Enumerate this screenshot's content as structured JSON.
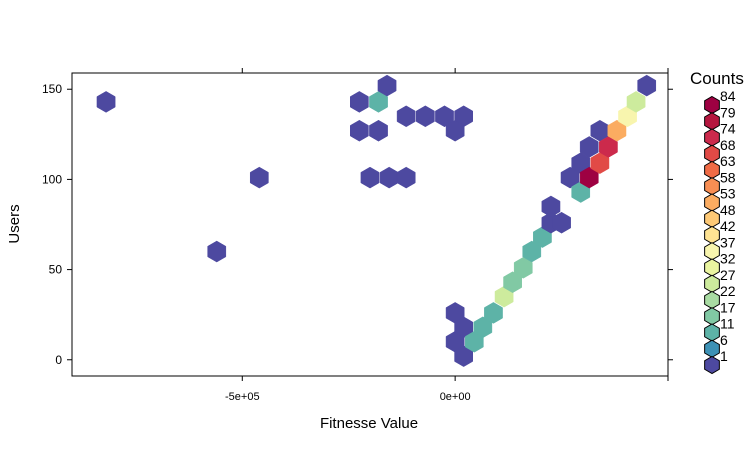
{
  "chart_data": {
    "type": "hexbin",
    "title": "",
    "xlabel": "Fitnesse Value",
    "ylabel": "Users",
    "xlim": [
      -900000,
      500000
    ],
    "ylim": [
      -9,
      159
    ],
    "xticks": [
      {
        "value": -500000,
        "label": "-5e+05"
      },
      {
        "value": 0,
        "label": "0e+00"
      }
    ],
    "yticks": [
      {
        "value": 0,
        "label": "0"
      },
      {
        "value": 50,
        "label": "50"
      },
      {
        "value": 100,
        "label": "100"
      },
      {
        "value": 150,
        "label": "150"
      }
    ],
    "x_ticks_top": [
      -500000,
      0,
      500000
    ],
    "x_ticks_bottom": [
      -500000,
      0,
      500000
    ],
    "legend": {
      "title": "Counts",
      "position": "right",
      "labels": [
        "84",
        "79",
        "74",
        "68",
        "63",
        "58",
        "53",
        "48",
        "42",
        "37",
        "32",
        "27",
        "22",
        "17",
        "11",
        "6",
        "1"
      ],
      "colors": [
        "#9e0142",
        "#b5163f",
        "#cc2a4c",
        "#e14a46",
        "#f06b45",
        "#f88e53",
        "#fbac61",
        "#fdc976",
        "#fee393",
        "#f8f5ae",
        "#eaf5a0",
        "#cdeb9d",
        "#a9dca3",
        "#81c9a4",
        "#5db3a7",
        "#3d91b5",
        "#4d49a0"
      ]
    },
    "cells": [
      {
        "x": -820000,
        "y": 143,
        "count": 1
      },
      {
        "x": -560000,
        "y": 60,
        "count": 1
      },
      {
        "x": -460000,
        "y": 101,
        "count": 1
      },
      {
        "x": -225000,
        "y": 143,
        "count": 1
      },
      {
        "x": -180000,
        "y": 143,
        "count": 11
      },
      {
        "x": -160000,
        "y": 152,
        "count": 1
      },
      {
        "x": -225000,
        "y": 127,
        "count": 1
      },
      {
        "x": -180000,
        "y": 127,
        "count": 1
      },
      {
        "x": -115000,
        "y": 135,
        "count": 1
      },
      {
        "x": -70000,
        "y": 135,
        "count": 1
      },
      {
        "x": -25000,
        "y": 135,
        "count": 1
      },
      {
        "x": 20000,
        "y": 135,
        "count": 1
      },
      {
        "x": 0,
        "y": 127,
        "count": 1
      },
      {
        "x": -200000,
        "y": 101,
        "count": 1
      },
      {
        "x": -155000,
        "y": 101,
        "count": 1
      },
      {
        "x": -115000,
        "y": 101,
        "count": 1
      },
      {
        "x": 0,
        "y": 26,
        "count": 1
      },
      {
        "x": 0,
        "y": 10,
        "count": 1
      },
      {
        "x": 20000,
        "y": 18,
        "count": 1
      },
      {
        "x": 20000,
        "y": 2,
        "count": 1
      },
      {
        "x": 45000,
        "y": 10,
        "count": 11
      },
      {
        "x": 65000,
        "y": 18,
        "count": 11
      },
      {
        "x": 90000,
        "y": 26,
        "count": 11
      },
      {
        "x": 115000,
        "y": 35,
        "count": 27
      },
      {
        "x": 135000,
        "y": 43,
        "count": 17
      },
      {
        "x": 160000,
        "y": 51,
        "count": 17
      },
      {
        "x": 180000,
        "y": 60,
        "count": 11
      },
      {
        "x": 205000,
        "y": 68,
        "count": 11
      },
      {
        "x": 225000,
        "y": 76,
        "count": 1
      },
      {
        "x": 250000,
        "y": 76,
        "count": 1
      },
      {
        "x": 225000,
        "y": 85,
        "count": 1
      },
      {
        "x": 270000,
        "y": 101,
        "count": 1
      },
      {
        "x": 295000,
        "y": 93,
        "count": 11
      },
      {
        "x": 295000,
        "y": 109,
        "count": 1
      },
      {
        "x": 315000,
        "y": 101,
        "count": 84
      },
      {
        "x": 315000,
        "y": 118,
        "count": 1
      },
      {
        "x": 340000,
        "y": 109,
        "count": 68
      },
      {
        "x": 340000,
        "y": 127,
        "count": 1
      },
      {
        "x": 360000,
        "y": 118,
        "count": 74
      },
      {
        "x": 380000,
        "y": 127,
        "count": 53
      },
      {
        "x": 405000,
        "y": 135,
        "count": 37
      },
      {
        "x": 425000,
        "y": 143,
        "count": 27
      },
      {
        "x": 450000,
        "y": 152,
        "count": 1
      }
    ]
  }
}
